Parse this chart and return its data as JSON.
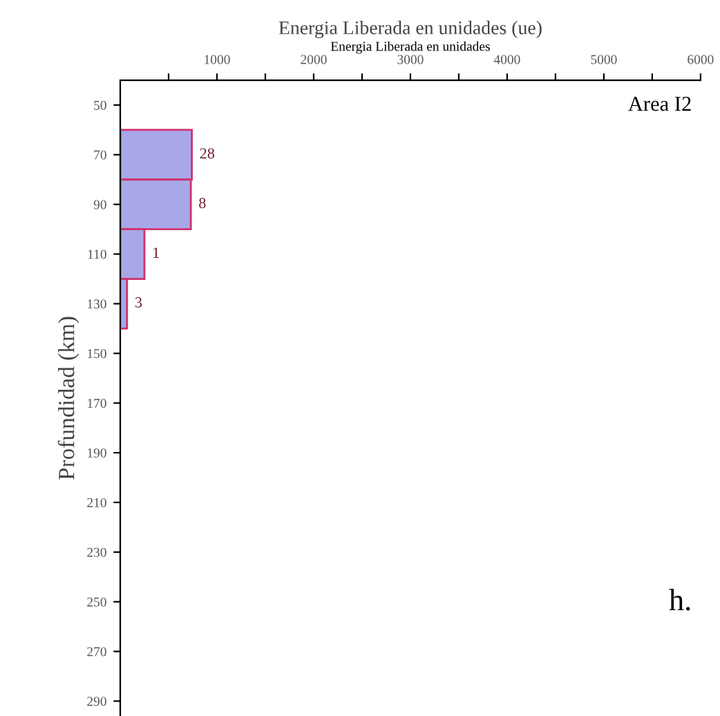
{
  "chart_data": {
    "type": "bar",
    "orientation": "horizontal",
    "title": "Energia Liberada en unidades (ue)",
    "xlabel": "Energia Liberada en unidades",
    "ylabel": "Profundidad (km)",
    "categories": [
      "50",
      "70",
      "90",
      "110",
      "130",
      "150",
      "170",
      "190",
      "210",
      "230",
      "250",
      "270",
      "290"
    ],
    "values": [
      null,
      740,
      730,
      250,
      70,
      null,
      null,
      null,
      null,
      null,
      null,
      null,
      null
    ],
    "color": "#a8a8e8",
    "xlim": [
      0,
      6000
    ],
    "xticks": [
      {
        "value": 500,
        "label": null
      },
      1000,
      {
        "value": 1500,
        "label": null
      },
      2000,
      {
        "value": 2500,
        "label": null
      },
      3000,
      {
        "value": 3500,
        "label": null
      },
      4000,
      {
        "value": 4500,
        "label": null
      },
      5000,
      {
        "value": 5500,
        "label": null
      },
      6000
    ],
    "annotations": [
      "Area I2",
      "h.",
      {
        "text": "28",
        "x": 740,
        "y": "70"
      },
      {
        "text": "8",
        "x": 730,
        "y": "90"
      },
      {
        "text": "1",
        "x": 250,
        "y": "110"
      },
      {
        "text": "3",
        "x": 70,
        "y": "130"
      }
    ],
    "grid": false,
    "legend": false
  }
}
